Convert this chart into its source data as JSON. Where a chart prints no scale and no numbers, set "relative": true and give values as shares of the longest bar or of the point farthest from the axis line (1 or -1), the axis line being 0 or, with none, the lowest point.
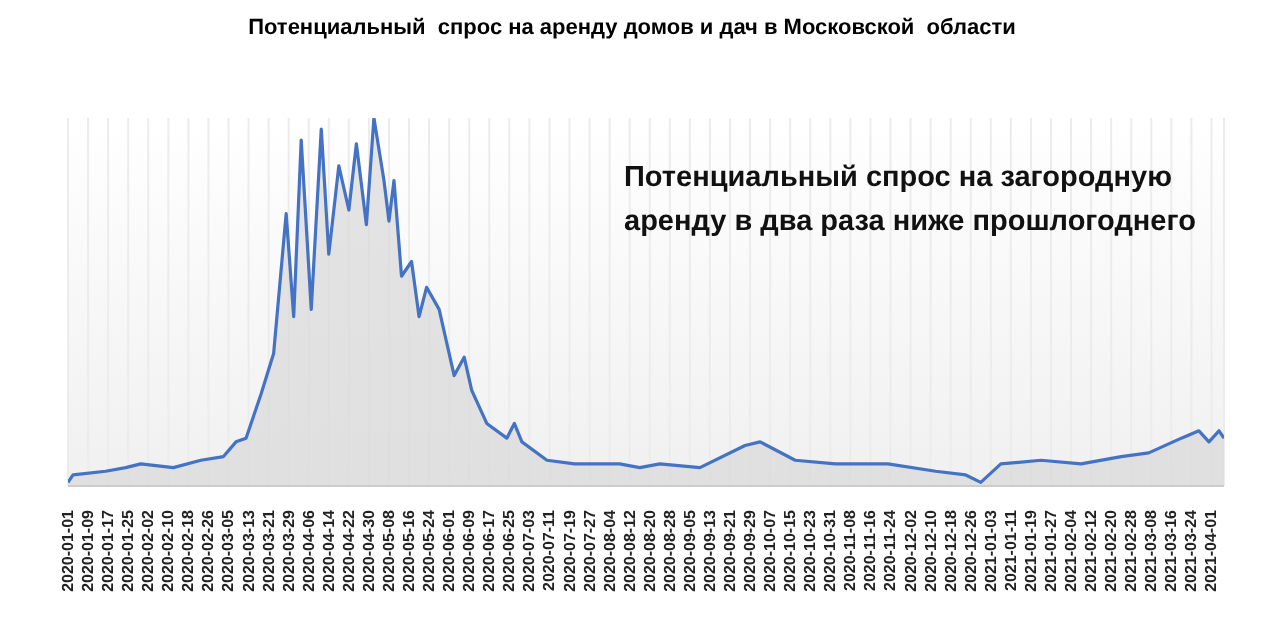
{
  "chart_data": {
    "type": "area",
    "title": "Потенциальный  спрос на аренду домов и дач в Московской  области",
    "annotations": [
      "Потенциальный спрос на загородную аренду в два раза ниже прошлогоднего"
    ],
    "relative": true,
    "grid": "x",
    "x": [
      "2020-01-01",
      "2020-01-03",
      "2020-01-16",
      "2020-01-24",
      "2020-01-30",
      "2020-02-12",
      "2020-02-23",
      "2020-03-03",
      "2020-03-08",
      "2020-03-12",
      "2020-03-18",
      "2020-03-23",
      "2020-03-28",
      "2020-03-31",
      "2020-04-03",
      "2020-04-07",
      "2020-04-11",
      "2020-04-14",
      "2020-04-18",
      "2020-04-22",
      "2020-04-25",
      "2020-04-29",
      "2020-05-02",
      "2020-05-06",
      "2020-05-08",
      "2020-05-10",
      "2020-05-13",
      "2020-05-17",
      "2020-05-20",
      "2020-05-23",
      "2020-05-28",
      "2020-06-03",
      "2020-06-07",
      "2020-06-10",
      "2020-06-16",
      "2020-06-24",
      "2020-06-27",
      "2020-06-30",
      "2020-07-10",
      "2020-07-21",
      "2020-07-31",
      "2020-08-08",
      "2020-08-16",
      "2020-08-24",
      "2020-09-09",
      "2020-09-27",
      "2020-10-03",
      "2020-10-17",
      "2020-11-02",
      "2020-11-23",
      "2020-12-12",
      "2020-12-24",
      "2020-12-30",
      "2021-01-07",
      "2021-01-23",
      "2021-02-08",
      "2021-02-24",
      "2021-03-07",
      "2021-03-20",
      "2021-03-27",
      "2021-03-31",
      "2021-04-04",
      "2021-04-06"
    ],
    "series": [
      {
        "color": "#4472c4",
        "values": [
          0.01,
          0.03,
          0.04,
          0.05,
          0.06,
          0.05,
          0.07,
          0.08,
          0.12,
          0.13,
          0.25,
          0.36,
          0.74,
          0.46,
          0.94,
          0.48,
          0.97,
          0.63,
          0.87,
          0.75,
          0.93,
          0.71,
          1,
          0.83,
          0.72,
          0.83,
          0.57,
          0.61,
          0.46,
          0.54,
          0.48,
          0.3,
          0.35,
          0.26,
          0.17,
          0.13,
          0.17,
          0.12,
          0.07,
          0.06,
          0.06,
          0.06,
          0.05,
          0.06,
          0.05,
          0.11,
          0.12,
          0.07,
          0.06,
          0.06,
          0.04,
          0.03,
          0.01,
          0.06,
          0.07,
          0.06,
          0.08,
          0.09,
          0.13,
          0.15,
          0.12,
          0.15,
          0.13
        ]
      }
    ],
    "xlim": [
      "2020-01-01",
      "2021-04-06"
    ],
    "xticks": [
      "2020-01-01",
      "2020-01-09",
      "2020-01-17",
      "2020-01-25",
      "2020-02-02",
      "2020-02-10",
      "2020-02-18",
      "2020-02-26",
      "2020-03-05",
      "2020-03-13",
      "2020-03-21",
      "2020-03-29",
      "2020-04-06",
      "2020-04-14",
      "2020-04-22",
      "2020-04-30",
      "2020-05-08",
      "2020-05-16",
      "2020-05-24",
      "2020-06-01",
      "2020-06-09",
      "2020-06-17",
      "2020-06-25",
      "2020-07-03",
      "2020-07-11",
      "2020-07-19",
      "2020-07-27",
      "2020-08-04",
      "2020-08-12",
      "2020-08-20",
      "2020-08-28",
      "2020-09-05",
      "2020-09-13",
      "2020-09-21",
      "2020-09-29",
      "2020-10-07",
      "2020-10-15",
      "2020-10-23",
      "2020-10-31",
      "2020-11-08",
      "2020-11-16",
      "2020-11-24",
      "2020-12-02",
      "2020-12-10",
      "2020-12-18",
      "2020-12-26",
      "2021-01-03",
      "2021-01-11",
      "2021-01-19",
      "2021-01-27",
      "2021-02-04",
      "2021-02-12",
      "2021-02-20",
      "2021-02-28",
      "2021-03-08",
      "2021-03-16",
      "2021-03-24",
      "2021-04-01"
    ]
  }
}
